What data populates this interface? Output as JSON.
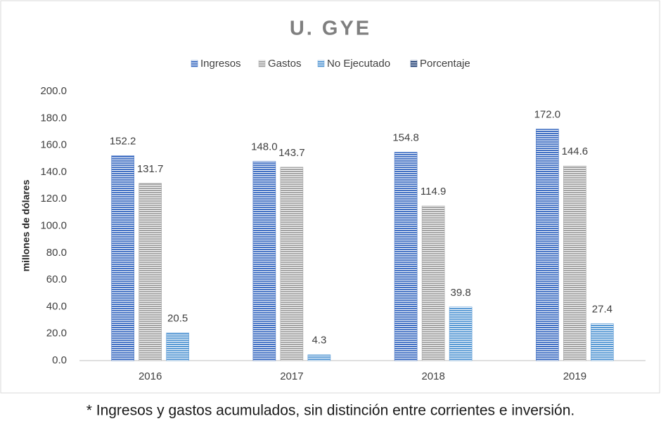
{
  "chart_data": {
    "type": "bar",
    "title": "U. GYE",
    "y_label": "millones de dólares",
    "categories": [
      "2016",
      "2017",
      "2018",
      "2019"
    ],
    "series": [
      {
        "name": "Ingresos",
        "color": "#4472c4",
        "values": [
          152.2,
          148.0,
          154.8,
          172.0
        ],
        "value_labels": [
          "152.2",
          "148.0",
          "154.8",
          "172.0"
        ]
      },
      {
        "name": "Gastos",
        "color": "#a5a5a5",
        "values": [
          131.7,
          143.7,
          114.9,
          144.6
        ],
        "value_labels": [
          "131.7",
          "143.7",
          "114.9",
          "144.6"
        ]
      },
      {
        "name": "No Ejecutado",
        "color": "#5b9bd5",
        "values": [
          20.5,
          4.3,
          39.8,
          27.4
        ],
        "value_labels": [
          "20.5",
          "4.3",
          "39.8",
          "27.4"
        ]
      },
      {
        "name": "Porcentaje",
        "color": "#264478",
        "values": [
          null,
          null,
          null,
          null
        ]
      }
    ],
    "ylim": [
      0,
      200
    ],
    "yticks": [
      {
        "value": 0,
        "label": "0.0"
      },
      {
        "value": 20,
        "label": "20.0"
      },
      {
        "value": 40,
        "label": "40.0"
      },
      {
        "value": 60,
        "label": "60.0"
      },
      {
        "value": 80,
        "label": "80.0"
      },
      {
        "value": 100,
        "label": "100.0"
      },
      {
        "value": 120,
        "label": "120.0"
      },
      {
        "value": 140,
        "label": "140.0"
      },
      {
        "value": 160,
        "label": "160.0"
      },
      {
        "value": 180,
        "label": "180.0"
      },
      {
        "value": 200,
        "label": "200.0"
      }
    ],
    "grid": false,
    "legend": "top",
    "note": "* Ingresos y gastos acumulados, sin distinción entre corrientes e inversión."
  }
}
